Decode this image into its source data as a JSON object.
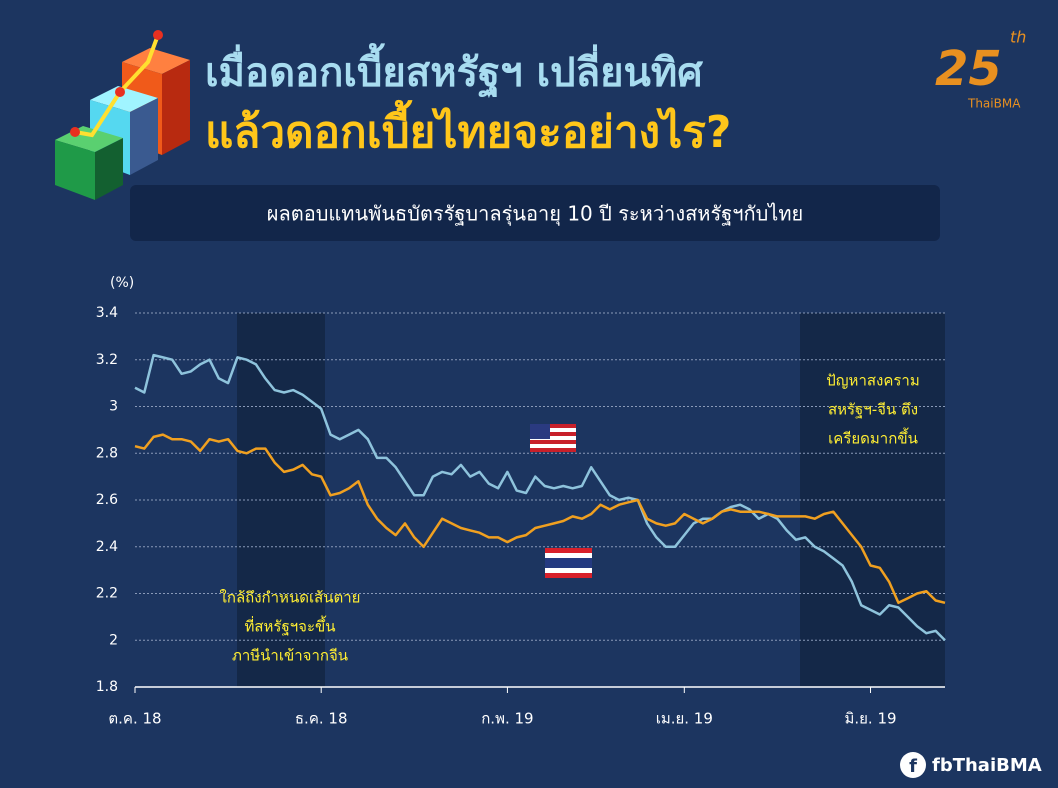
{
  "title": [
    "เมื่อดอกเบี้ยสหรัฐฯ เปลี่ยนทิศ",
    "แล้วดอกเบี้ยไทยจะอย่างไร?"
  ],
  "logo": {
    "number": "25",
    "suffix": "th",
    "name": "ThaiBMA"
  },
  "footer": "fbThaiBMA",
  "chart_data": {
    "type": "line",
    "subtitle": "ผลตอบแทนพันธบัตรรัฐบาลรุ่นอายุ 10 ปี ระหว่างสหรัฐฯกับไทย",
    "y_label": "(%)",
    "categories": [
      "ต.ค. 18",
      null,
      null,
      null,
      null,
      null,
      null,
      null,
      null,
      null,
      null,
      null,
      null,
      null,
      null,
      null,
      null,
      null,
      null,
      null,
      "ธ.ค. 18",
      null,
      null,
      null,
      null,
      null,
      null,
      null,
      null,
      null,
      null,
      null,
      null,
      null,
      null,
      null,
      null,
      null,
      null,
      null,
      "ก.พ. 19",
      null,
      null,
      null,
      null,
      null,
      null,
      null,
      null,
      null,
      null,
      null,
      null,
      null,
      null,
      null,
      null,
      null,
      null,
      "เม.ย. 19",
      null,
      null,
      null,
      null,
      null,
      null,
      null,
      null,
      null,
      null,
      null,
      null,
      null,
      null,
      null,
      null,
      null,
      null,
      null,
      "มิ.ย. 19",
      null,
      null,
      null,
      null,
      null,
      null,
      null,
      null
    ],
    "series": [
      {
        "color": "#8ec3dc",
        "values": [
          3.08,
          3.06,
          3.22,
          3.21,
          3.2,
          3.14,
          3.15,
          3.18,
          3.2,
          3.12,
          3.1,
          3.21,
          3.2,
          3.18,
          3.12,
          3.07,
          3.06,
          3.07,
          3.05,
          3.02,
          2.99,
          2.88,
          2.86,
          2.88,
          2.9,
          2.86,
          2.78,
          2.78,
          2.74,
          2.68,
          2.62,
          2.62,
          2.7,
          2.72,
          2.71,
          2.75,
          2.7,
          2.72,
          2.67,
          2.65,
          2.72,
          2.64,
          2.63,
          2.7,
          2.66,
          2.65,
          2.66,
          2.65,
          2.66,
          2.74,
          2.68,
          2.62,
          2.6,
          2.61,
          2.6,
          2.5,
          2.44,
          2.4,
          2.4,
          2.45,
          2.5,
          2.52,
          2.52,
          2.55,
          2.57,
          2.58,
          2.56,
          2.52,
          2.54,
          2.52,
          2.47,
          2.43,
          2.44,
          2.4,
          2.38,
          2.35,
          2.32,
          2.25,
          2.15,
          2.13,
          2.11,
          2.15,
          2.14,
          2.1,
          2.06,
          2.03,
          2.04,
          2.0
        ]
      },
      {
        "color": "#f0a020",
        "values": [
          2.83,
          2.82,
          2.87,
          2.88,
          2.86,
          2.86,
          2.85,
          2.81,
          2.86,
          2.85,
          2.86,
          2.81,
          2.8,
          2.82,
          2.82,
          2.76,
          2.72,
          2.73,
          2.75,
          2.71,
          2.7,
          2.62,
          2.63,
          2.65,
          2.68,
          2.58,
          2.52,
          2.48,
          2.45,
          2.5,
          2.44,
          2.4,
          2.46,
          2.52,
          2.5,
          2.48,
          2.47,
          2.46,
          2.44,
          2.44,
          2.42,
          2.44,
          2.45,
          2.48,
          2.49,
          2.5,
          2.51,
          2.53,
          2.52,
          2.54,
          2.58,
          2.56,
          2.58,
          2.59,
          2.6,
          2.52,
          2.5,
          2.49,
          2.5,
          2.54,
          2.52,
          2.5,
          2.52,
          2.55,
          2.56,
          2.55,
          2.55,
          2.55,
          2.54,
          2.53,
          2.53,
          2.53,
          2.53,
          2.52,
          2.54,
          2.55,
          2.5,
          2.45,
          2.4,
          2.32,
          2.31,
          2.25,
          2.16,
          2.18,
          2.2,
          2.21,
          2.17,
          2.16
        ]
      }
    ],
    "ylim": [
      1.8,
      3.4
    ],
    "yticks": [
      1.8,
      2,
      2.2,
      2.4,
      2.6,
      2.8,
      3,
      3.2,
      3.4
    ],
    "grid": true,
    "annotations": [
      [
        "ใกล้ถึงกำหนดเส้นตาย",
        "ที่สหรัฐฯจะขึ้น",
        "ภาษีนำเข้าจากจีน"
      ],
      [
        "ปัญหาสงคราม",
        "สหรัฐฯ-จีน ตึง",
        "เครียดมากขึ้น"
      ]
    ]
  }
}
